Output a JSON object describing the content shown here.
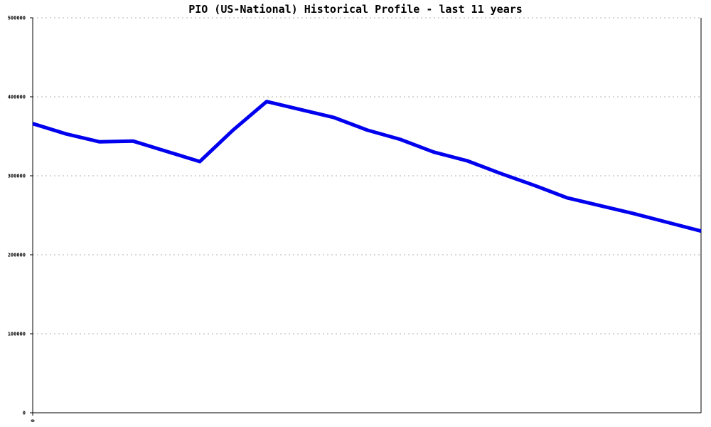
{
  "chart_data": {
    "type": "line",
    "title": "PIO (US-National) Historical Profile - last 11 years",
    "xlabel": "",
    "ylabel": "",
    "ylim": [
      0,
      500000
    ],
    "y_ticks": [
      "0",
      "100000",
      "200000",
      "300000",
      "400000",
      "500000"
    ],
    "x_ticks": [
      "0"
    ],
    "grid": true,
    "series": [
      {
        "color": "#0000ee",
        "x": [
          0,
          1,
          2,
          3,
          4,
          5,
          6,
          7,
          8,
          9,
          10,
          11,
          12,
          13,
          14,
          15,
          16,
          17,
          18,
          19,
          20
        ],
        "values": [
          366000,
          353000,
          343000,
          344000,
          331000,
          318000,
          358000,
          394000,
          384000,
          374000,
          358000,
          346000,
          330000,
          319000,
          303000,
          288000,
          272000,
          262000,
          252000,
          241000,
          230000
        ]
      }
    ]
  }
}
